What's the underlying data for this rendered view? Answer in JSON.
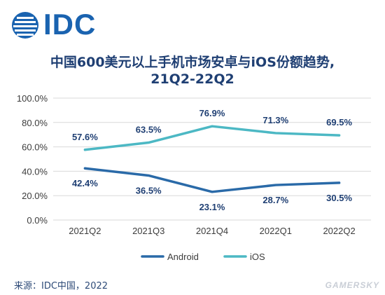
{
  "logo": {
    "text": "IDC",
    "color": "#1a63b0",
    "icon": "globe-icon"
  },
  "source": "来源：IDC中国，2022",
  "watermark": "GAMERSKY",
  "chart_data": {
    "type": "line",
    "title_line1": "中国600美元以上手机市场安卓与iOS份额趋势,",
    "title_line2": "21Q2-22Q2",
    "categories": [
      "2021Q2",
      "2021Q3",
      "2021Q4",
      "2022Q1",
      "2022Q2"
    ],
    "y_ticks": [
      "100.0%",
      "80.0%",
      "60.0%",
      "40.0%",
      "20.0%",
      "0.0%"
    ],
    "ylim": [
      0,
      100
    ],
    "grid": true,
    "legend_position": "bottom",
    "series": [
      {
        "name": "Android",
        "color": "#2a6aa8",
        "values": [
          42.4,
          36.5,
          23.1,
          28.7,
          30.5
        ],
        "labels": [
          "42.4%",
          "36.5%",
          "23.1%",
          "28.7%",
          "30.5%"
        ],
        "label_position": "below"
      },
      {
        "name": "iOS",
        "color": "#4cb8c4",
        "values": [
          57.6,
          63.5,
          76.9,
          71.3,
          69.5
        ],
        "labels": [
          "57.6%",
          "63.5%",
          "76.9%",
          "71.3%",
          "69.5%"
        ],
        "label_position": "above"
      }
    ]
  }
}
